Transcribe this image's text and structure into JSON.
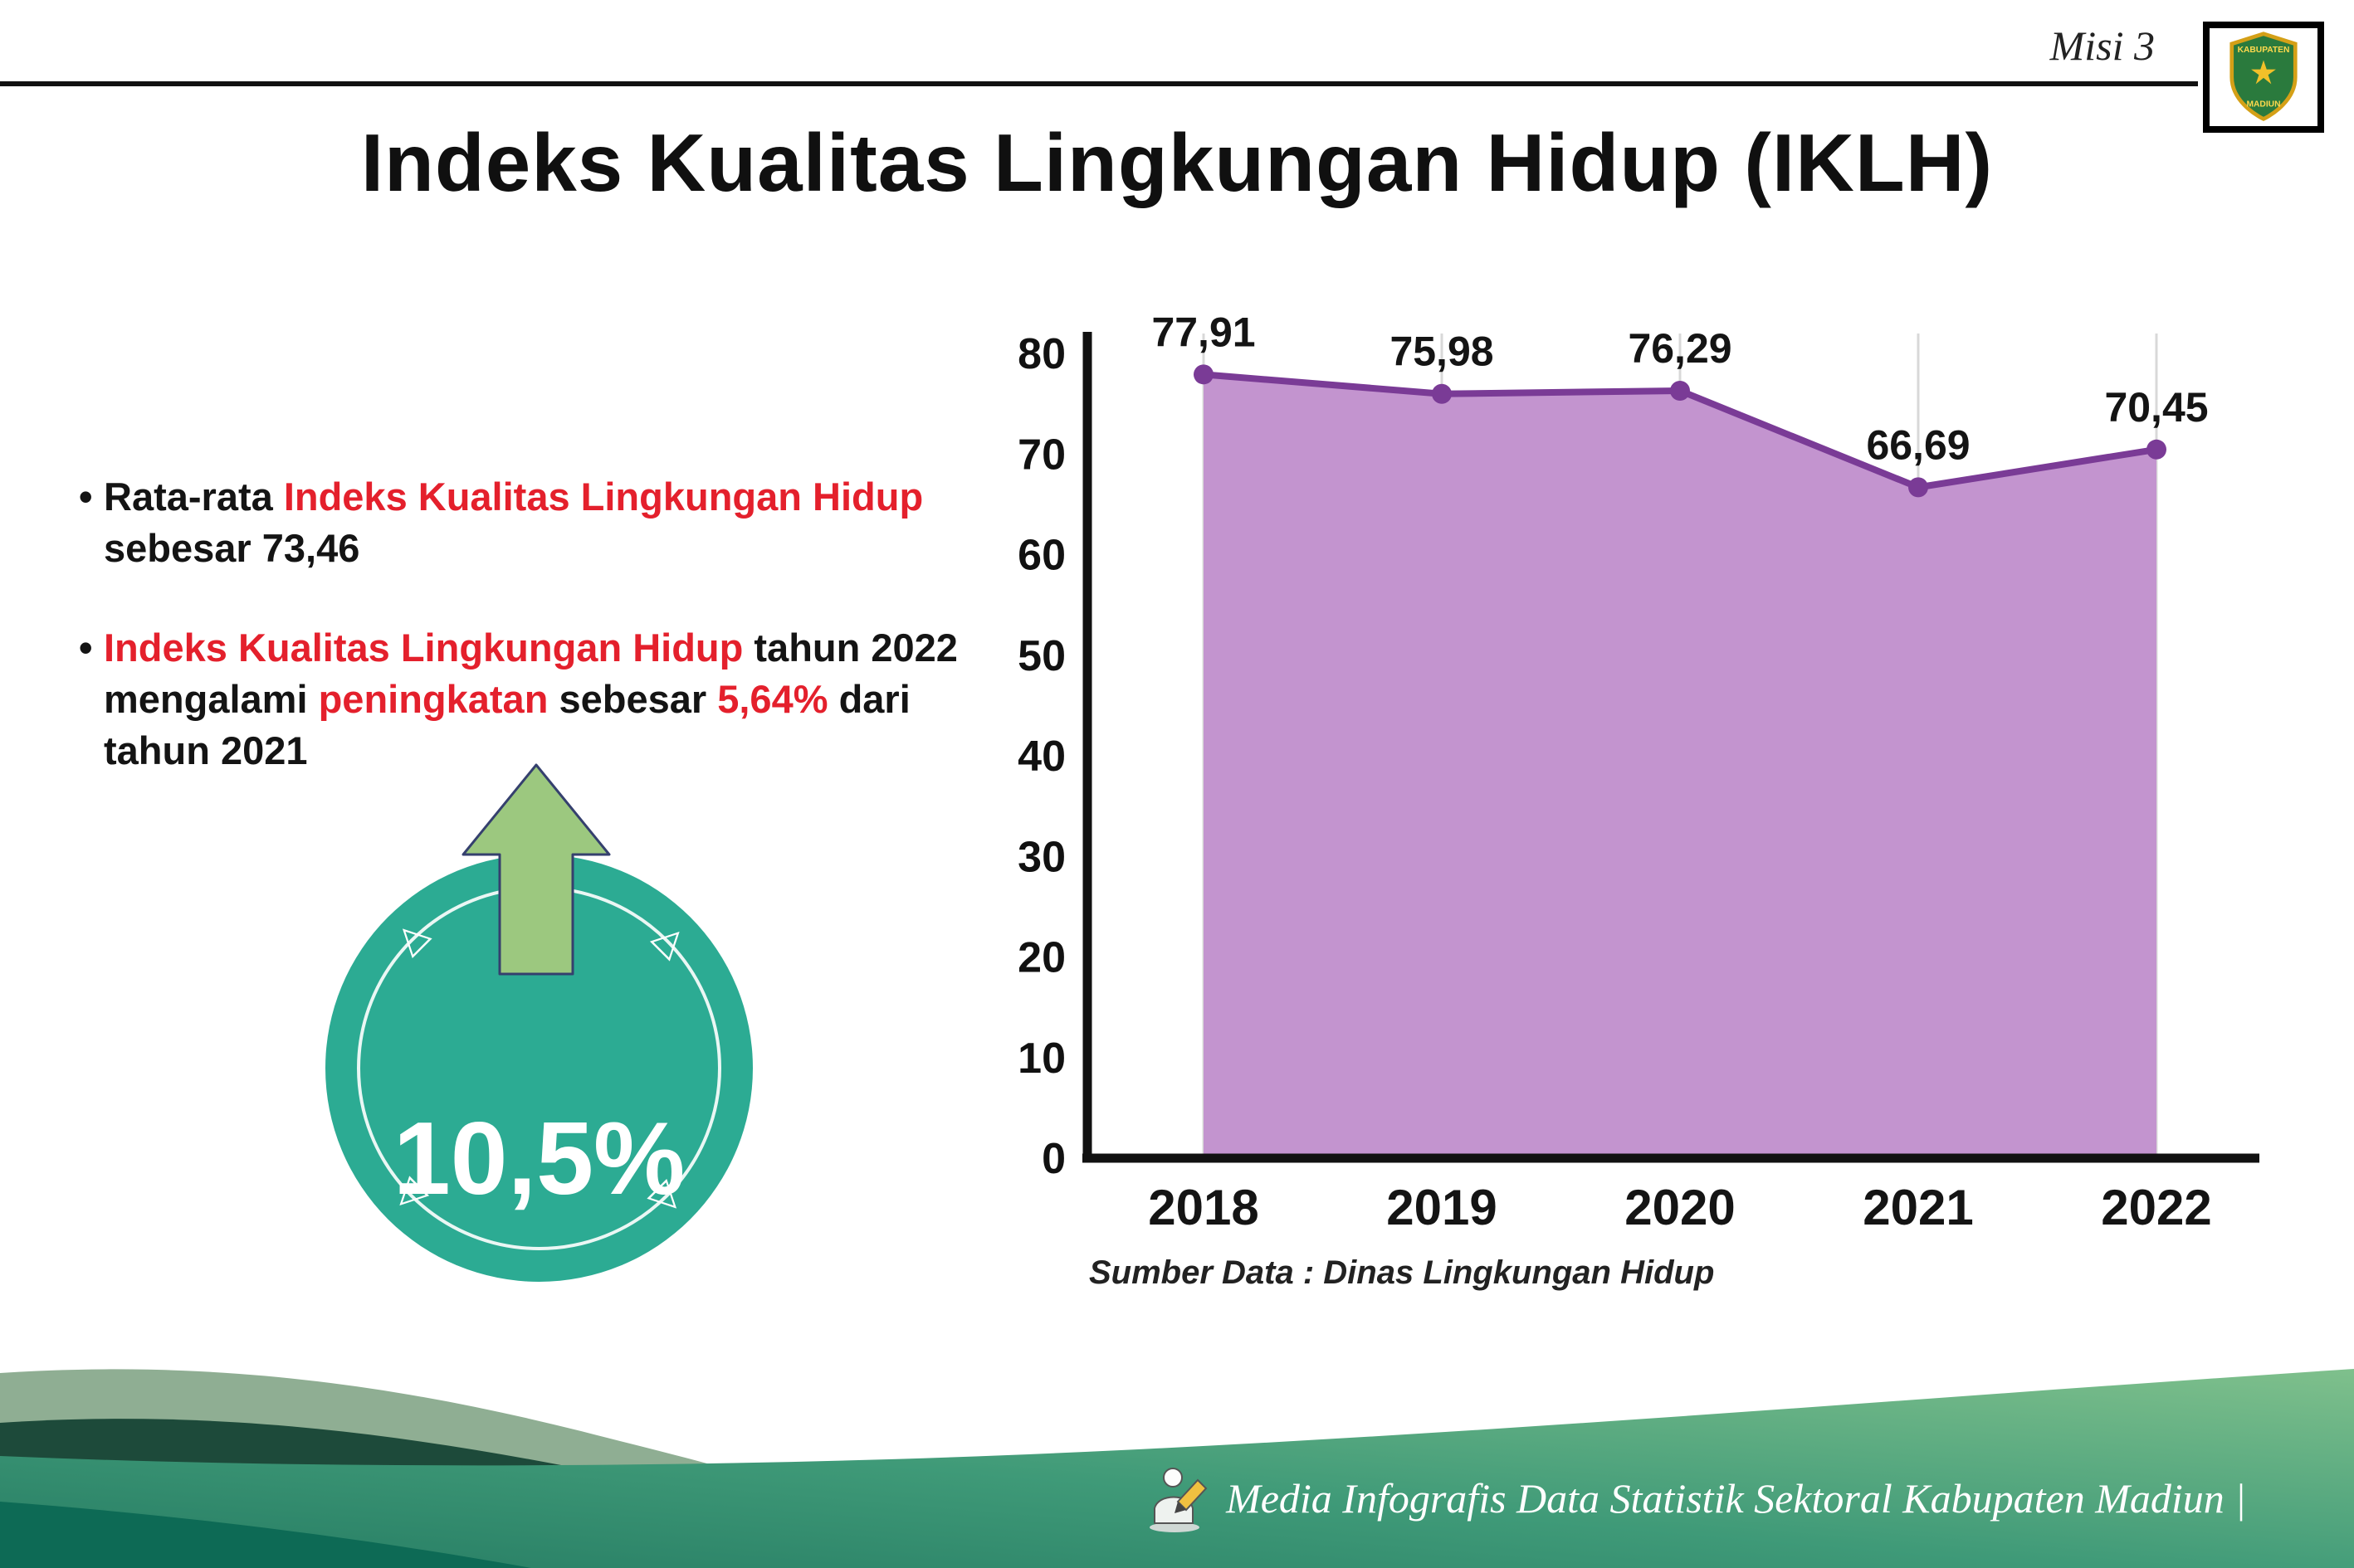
{
  "header": {
    "misi_label": "Misi 3",
    "title": "Indeks Kualitas Lingkungan Hidup (IKLH)",
    "logo": {
      "name": "Kabupaten Madiun",
      "top_text": "KABUPATEN",
      "bottom_text": "MADIUN"
    }
  },
  "bullets": {
    "b1": {
      "seg1": "Rata-rata ",
      "seg2": "Indeks Kualitas Lingkungan Hidup",
      "seg3": " sebesar 73,46"
    },
    "b2": {
      "seg1": "Indeks Kualitas Lingkungan Hidup",
      "seg2": " tahun 2022 mengalami ",
      "seg3": "peningkatan",
      "seg4": " sebesar ",
      "seg5": "5,64%",
      "seg6": " dari tahun 2021"
    }
  },
  "badge": {
    "percent": "10,5%"
  },
  "chart_data": {
    "type": "area",
    "title": "Indeks Kualitas Lingkungan Hidup (IKLH)",
    "categories": [
      "2018",
      "2019",
      "2020",
      "2021",
      "2022"
    ],
    "values": [
      77.91,
      75.98,
      76.29,
      66.69,
      70.45
    ],
    "value_labels": [
      "77,91",
      "75,98",
      "76,29",
      "66,69",
      "70,45"
    ],
    "ylim": [
      0,
      80
    ],
    "yticks": [
      "0",
      "10",
      "20",
      "30",
      "40",
      "50",
      "60",
      "70",
      "80"
    ],
    "grid": "vertical-light",
    "legend": "none",
    "line_color": "#7a3b96",
    "fill_color": "#c394cf",
    "source_note": "Sumber Data : Dinas Lingkungan Hidup"
  },
  "footer": {
    "credit": "Media Infografis Data Statistik Sektoral Kabupaten Madiun |"
  },
  "colors": {
    "accent_red": "#e4202c",
    "badge_teal": "#2cab93",
    "arrow_green": "#9cc87f",
    "line_purple": "#7a3b96",
    "fill_purple": "#c394cf",
    "footer_dark_green": "#1d4a3a",
    "footer_teal": "#3f9a78"
  }
}
